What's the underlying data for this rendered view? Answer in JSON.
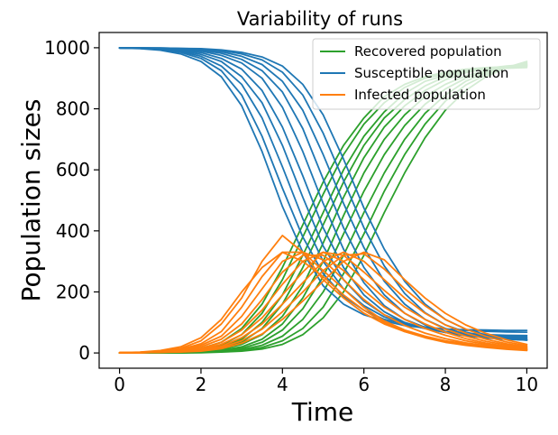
{
  "chart_data": {
    "type": "line",
    "title": "Variability of runs",
    "xlabel": "Time",
    "ylabel": "Population sizes",
    "xlim": [
      -0.5,
      10.5
    ],
    "ylim": [
      -50,
      1050
    ],
    "xticks": [
      0,
      2,
      4,
      6,
      8,
      10
    ],
    "yticks": [
      0,
      200,
      400,
      600,
      800,
      1000
    ],
    "grid": false,
    "legend_position": "top-right",
    "x": [
      0,
      0.5,
      1,
      1.5,
      2,
      2.5,
      3,
      3.5,
      4,
      4.5,
      5,
      5.5,
      6,
      6.5,
      7,
      7.5,
      8,
      8.5,
      9,
      9.5,
      10
    ],
    "series": [
      {
        "name": "Recovered population",
        "color": "#2ca02c",
        "runs": [
          [
            0,
            0,
            2,
            6,
            15,
            35,
            80,
            160,
            280,
            420,
            560,
            680,
            770,
            840,
            880,
            905,
            920,
            930,
            935,
            938,
            940
          ],
          [
            0,
            0,
            1,
            4,
            10,
            25,
            60,
            130,
            240,
            380,
            520,
            650,
            750,
            820,
            870,
            900,
            915,
            925,
            930,
            933,
            935
          ],
          [
            0,
            0,
            1,
            3,
            8,
            20,
            45,
            100,
            190,
            320,
            460,
            600,
            710,
            790,
            850,
            890,
            910,
            925,
            932,
            936,
            938
          ],
          [
            0,
            0,
            1,
            3,
            6,
            15,
            35,
            80,
            160,
            280,
            420,
            560,
            680,
            770,
            830,
            875,
            905,
            922,
            932,
            938,
            942
          ],
          [
            0,
            0,
            0,
            2,
            5,
            12,
            28,
            60,
            120,
            220,
            360,
            510,
            640,
            740,
            810,
            860,
            895,
            918,
            932,
            940,
            945
          ],
          [
            0,
            0,
            0,
            1,
            4,
            9,
            20,
            45,
            95,
            180,
            300,
            450,
            590,
            700,
            780,
            840,
            880,
            908,
            925,
            935,
            942
          ],
          [
            0,
            0,
            0,
            1,
            3,
            7,
            15,
            35,
            75,
            145,
            250,
            390,
            530,
            650,
            745,
            815,
            865,
            900,
            922,
            936,
            945
          ],
          [
            0,
            0,
            0,
            1,
            2,
            5,
            11,
            25,
            55,
            110,
            200,
            320,
            460,
            590,
            700,
            785,
            845,
            890,
            918,
            935,
            948
          ],
          [
            0,
            0,
            0,
            1,
            2,
            4,
            8,
            18,
            40,
            80,
            150,
            260,
            390,
            530,
            650,
            750,
            825,
            878,
            912,
            935,
            950
          ],
          [
            0,
            0,
            0,
            0,
            1,
            3,
            6,
            13,
            28,
            60,
            115,
            200,
            320,
            460,
            590,
            705,
            795,
            860,
            905,
            935,
            955
          ]
        ]
      },
      {
        "name": "Susceptible population",
        "color": "#1f77b4",
        "runs": [
          [
            999,
            997,
            992,
            980,
            955,
            905,
            810,
            660,
            480,
            330,
            220,
            160,
            125,
            105,
            90,
            82,
            78,
            76,
            75,
            74,
            74
          ],
          [
            999,
            998,
            994,
            985,
            965,
            925,
            845,
            710,
            540,
            380,
            260,
            185,
            140,
            110,
            95,
            85,
            78,
            74,
            71,
            69,
            68
          ],
          [
            999,
            998,
            995,
            988,
            972,
            940,
            880,
            770,
            610,
            440,
            300,
            210,
            155,
            118,
            95,
            80,
            70,
            64,
            60,
            58,
            57
          ],
          [
            999,
            998,
            996,
            990,
            978,
            955,
            905,
            820,
            680,
            510,
            350,
            240,
            170,
            125,
            98,
            80,
            68,
            60,
            56,
            54,
            53
          ],
          [
            999,
            999,
            997,
            993,
            984,
            965,
            930,
            860,
            740,
            580,
            410,
            280,
            190,
            135,
            100,
            80,
            67,
            58,
            53,
            50,
            49
          ],
          [
            999,
            999,
            998,
            995,
            989,
            975,
            950,
            900,
            805,
            660,
            490,
            340,
            230,
            155,
            110,
            84,
            67,
            56,
            50,
            47,
            46
          ],
          [
            1000,
            999,
            998,
            996,
            992,
            982,
            962,
            925,
            855,
            735,
            570,
            410,
            280,
            190,
            130,
            92,
            70,
            57,
            49,
            45,
            43
          ],
          [
            1000,
            999,
            998,
            997,
            994,
            987,
            972,
            945,
            890,
            795,
            650,
            490,
            345,
            235,
            160,
            110,
            80,
            62,
            51,
            45,
            42
          ],
          [
            1000,
            999,
            999,
            998,
            996,
            991,
            980,
            960,
            920,
            845,
            720,
            565,
            410,
            285,
            195,
            132,
            92,
            68,
            54,
            46,
            42
          ],
          [
            1000,
            1000,
            999,
            998,
            997,
            993,
            985,
            970,
            940,
            880,
            780,
            635,
            475,
            340,
            235,
            160,
            110,
            78,
            59,
            48,
            42
          ]
        ]
      },
      {
        "name": "Infected population",
        "color": "#ff7f0e",
        "runs": [
          [
            1,
            3,
            8,
            20,
            50,
            110,
            200,
            280,
            330,
            300,
            250,
            190,
            140,
            100,
            70,
            50,
            35,
            25,
            18,
            12,
            8
          ],
          [
            1,
            2,
            6,
            15,
            40,
            95,
            180,
            300,
            385,
            330,
            240,
            180,
            130,
            95,
            70,
            52,
            38,
            28,
            20,
            14,
            10
          ],
          [
            1,
            2,
            5,
            12,
            30,
            70,
            150,
            250,
            330,
            330,
            270,
            210,
            150,
            105,
            75,
            55,
            40,
            30,
            22,
            15,
            10
          ],
          [
            1,
            2,
            4,
            10,
            25,
            55,
            120,
            210,
            300,
            330,
            305,
            240,
            175,
            125,
            90,
            65,
            47,
            33,
            24,
            17,
            12
          ],
          [
            1,
            2,
            4,
            8,
            20,
            45,
            95,
            175,
            265,
            320,
            320,
            270,
            205,
            150,
            110,
            80,
            58,
            40,
            28,
            20,
            14
          ],
          [
            1,
            1,
            3,
            6,
            15,
            35,
            75,
            140,
            225,
            300,
            330,
            300,
            240,
            180,
            130,
            95,
            68,
            47,
            32,
            22,
            15
          ],
          [
            1,
            1,
            3,
            5,
            12,
            28,
            60,
            115,
            190,
            265,
            330,
            320,
            265,
            205,
            150,
            110,
            78,
            55,
            38,
            26,
            18
          ],
          [
            1,
            1,
            2,
            4,
            10,
            22,
            50,
            95,
            160,
            230,
            300,
            330,
            300,
            240,
            180,
            130,
            92,
            65,
            45,
            30,
            20
          ],
          [
            1,
            1,
            2,
            4,
            8,
            18,
            40,
            78,
            135,
            200,
            270,
            320,
            325,
            275,
            210,
            155,
            110,
            78,
            54,
            36,
            24
          ],
          [
            1,
            1,
            2,
            3,
            6,
            14,
            32,
            62,
            110,
            170,
            235,
            300,
            330,
            305,
            240,
            180,
            130,
            92,
            64,
            43,
            28
          ]
        ]
      }
    ]
  }
}
